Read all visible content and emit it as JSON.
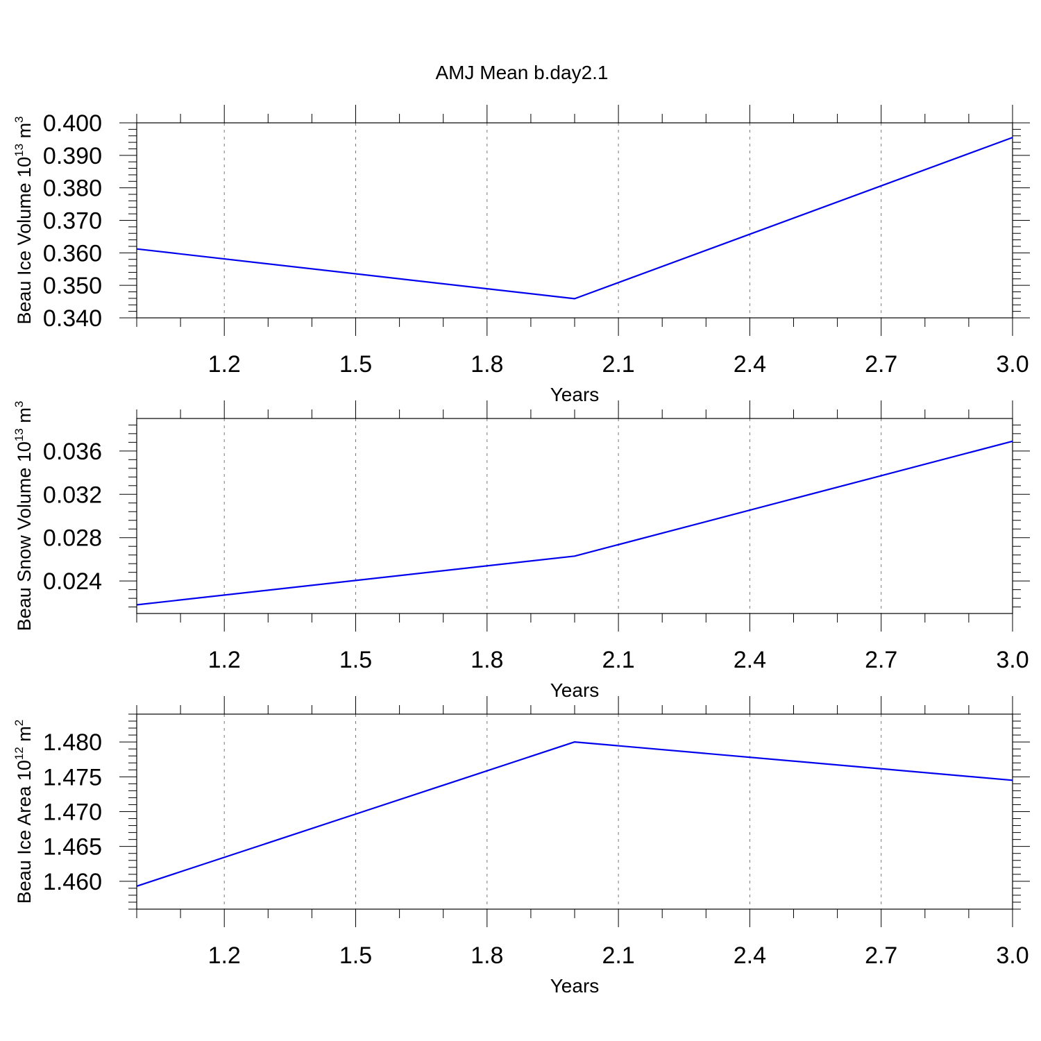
{
  "title": "AMJ Mean b.day2.1",
  "colors": {
    "series": "#0000ee",
    "grid": "#777777",
    "axis": "#000000"
  },
  "chart_data": [
    {
      "type": "line",
      "ylabel": {
        "main": "Beau Ice Volume 10",
        "sup1": "13",
        "mid": " m",
        "sup2": "3"
      },
      "xlabel": "Years",
      "xlim": [
        1.0,
        3.0
      ],
      "ylim": [
        0.34,
        0.4
      ],
      "xticks": [
        "1.2",
        "1.5",
        "1.8",
        "2.1",
        "2.4",
        "2.7",
        "3.0"
      ],
      "yticks": [
        "0.340",
        "0.350",
        "0.360",
        "0.370",
        "0.380",
        "0.390",
        "0.400"
      ],
      "grid": true,
      "series": [
        {
          "x": [
            1.0,
            2.0,
            3.0
          ],
          "values": [
            0.3612,
            0.3459,
            0.3955
          ]
        }
      ]
    },
    {
      "type": "line",
      "ylabel": {
        "main": "Beau Snow Volume 10",
        "sup1": "13",
        "mid": " m",
        "sup2": "3"
      },
      "xlabel": "Years",
      "xlim": [
        1.0,
        3.0
      ],
      "ylim": [
        0.021,
        0.039
      ],
      "xticks": [
        "1.2",
        "1.5",
        "1.8",
        "2.1",
        "2.4",
        "2.7",
        "3.0"
      ],
      "yticks": [
        "0.024",
        "0.028",
        "0.032",
        "0.036"
      ],
      "grid": true,
      "series": [
        {
          "x": [
            1.0,
            2.0,
            3.0
          ],
          "values": [
            0.0218,
            0.0263,
            0.0369
          ]
        }
      ]
    },
    {
      "type": "line",
      "ylabel": {
        "main": "Beau Ice Area 10",
        "sup1": "12",
        "mid": " m",
        "sup2": "2"
      },
      "xlabel": "Years",
      "xlim": [
        1.0,
        3.0
      ],
      "ylim": [
        1.456,
        1.484
      ],
      "xticks": [
        "1.2",
        "1.5",
        "1.8",
        "2.1",
        "2.4",
        "2.7",
        "3.0"
      ],
      "yticks": [
        "1.460",
        "1.465",
        "1.470",
        "1.475",
        "1.480"
      ],
      "grid": true,
      "series": [
        {
          "x": [
            1.0,
            2.0,
            3.0
          ],
          "values": [
            1.4593,
            1.48,
            1.4745
          ]
        }
      ]
    }
  ]
}
